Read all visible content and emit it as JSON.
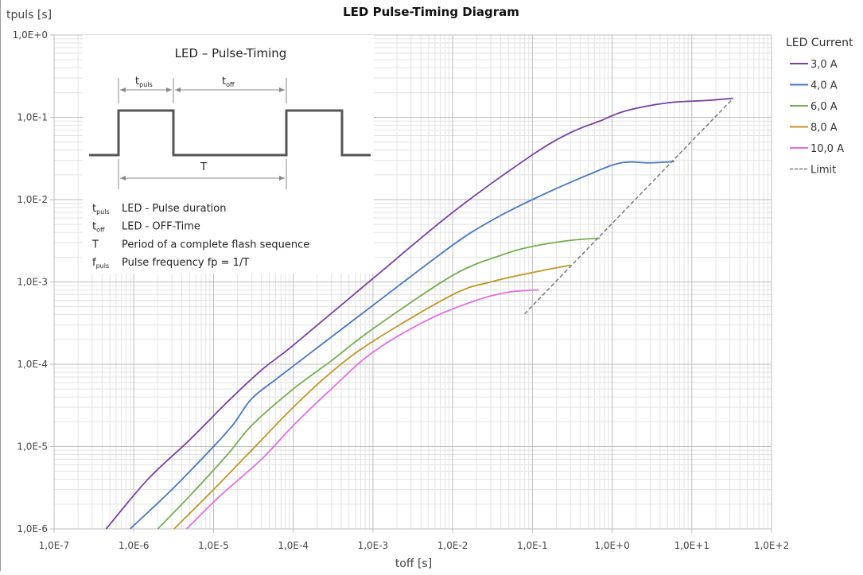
{
  "chart_data": {
    "type": "line",
    "title": "LED Pulse-Timing Diagram",
    "xlabel": "toff [s]",
    "ylabel": "tpuls [s]",
    "x_scale": "log",
    "y_scale": "log",
    "xlim": [
      1e-07,
      100
    ],
    "ylim": [
      1e-06,
      1
    ],
    "grid": true,
    "x_ticks": [
      "1,0E-7",
      "1,0E-6",
      "1,0E-5",
      "1,0E-4",
      "1,0E-3",
      "1,0E-2",
      "1,0E-1",
      "1,0E+0",
      "1,0E+1",
      "1,0E+2"
    ],
    "y_ticks": [
      "1,0E-6",
      "1,0E-5",
      "1,0E-4",
      "1,0E-3",
      "1,0E-2",
      "1,0E-1",
      "1,0E+0"
    ],
    "legend_title": "LED Current",
    "legend_position": "right",
    "series": [
      {
        "name": "3,0 A",
        "color": "#7a3ea1",
        "dash": false,
        "points": [
          [
            4.5e-07,
            1e-06
          ],
          [
            1.5e-06,
            4e-06
          ],
          [
            5e-06,
            1.2e-05
          ],
          [
            1.5e-05,
            3.5e-05
          ],
          [
            4e-05,
            8.5e-05
          ],
          [
            0.0001,
            0.00017
          ],
          [
            0.001,
            0.0011
          ],
          [
            0.01,
            0.007
          ],
          [
            0.1,
            0.035
          ],
          [
            0.3,
            0.065
          ],
          [
            0.7,
            0.09
          ],
          [
            1.5,
            0.12
          ],
          [
            5,
            0.15
          ],
          [
            15,
            0.16
          ],
          [
            33,
            0.17
          ]
        ]
      },
      {
        "name": "4,0 A",
        "color": "#4677c1",
        "dash": false,
        "points": [
          [
            9e-07,
            1e-06
          ],
          [
            3e-06,
            3e-06
          ],
          [
            1e-05,
            1e-05
          ],
          [
            1.8e-05,
            1.9e-05
          ],
          [
            3e-05,
            3.8e-05
          ],
          [
            6e-05,
            6.5e-05
          ],
          [
            0.0001,
            9.5e-05
          ],
          [
            0.001,
            0.00052
          ],
          [
            0.01,
            0.0028
          ],
          [
            0.03,
            0.0055
          ],
          [
            0.1,
            0.01
          ],
          [
            0.5,
            0.02
          ],
          [
            1.3,
            0.028
          ],
          [
            3,
            0.028
          ],
          [
            6,
            0.029
          ]
        ]
      },
      {
        "name": "6,0 A",
        "color": "#74af4f",
        "dash": false,
        "points": [
          [
            2e-06,
            1e-06
          ],
          [
            5e-06,
            2.5e-06
          ],
          [
            1.5e-05,
            8e-06
          ],
          [
            3e-05,
            1.8e-05
          ],
          [
            0.0001,
            5e-05
          ],
          [
            0.0003,
            0.00011
          ],
          [
            0.001,
            0.00027
          ],
          [
            0.01,
            0.0012
          ],
          [
            0.04,
            0.0021
          ],
          [
            0.1,
            0.0027
          ],
          [
            0.3,
            0.0032
          ],
          [
            0.7,
            0.0034
          ]
        ]
      },
      {
        "name": "8,0 A",
        "color": "#c29524",
        "dash": false,
        "points": [
          [
            3.2e-06,
            1e-06
          ],
          [
            1e-05,
            3e-06
          ],
          [
            3e-05,
            9e-06
          ],
          [
            0.0001,
            3e-05
          ],
          [
            0.0003,
            8e-05
          ],
          [
            0.001,
            0.00019
          ],
          [
            0.01,
            0.0007
          ],
          [
            0.03,
            0.001
          ],
          [
            0.1,
            0.0013
          ],
          [
            0.3,
            0.0016
          ]
        ]
      },
      {
        "name": "10,0 A",
        "color": "#e46ee0",
        "dash": false,
        "points": [
          [
            4.6e-06,
            1e-06
          ],
          [
            1.2e-05,
            2.5e-06
          ],
          [
            4e-05,
            7e-06
          ],
          [
            0.0001,
            1.8e-05
          ],
          [
            0.0003,
            5e-05
          ],
          [
            0.001,
            0.00014
          ],
          [
            0.005,
            0.00035
          ],
          [
            0.02,
            0.0006
          ],
          [
            0.05,
            0.00075
          ],
          [
            0.12,
            0.0008
          ]
        ]
      },
      {
        "name": "Limit",
        "color": "#777777",
        "dash": true,
        "points": [
          [
            0.08,
            0.00041
          ],
          [
            33,
            0.17
          ]
        ]
      }
    ]
  },
  "inset": {
    "title": "LED – Pulse-Timing",
    "t": "t",
    "sub_puls": "puls",
    "sub_off": "off",
    "period_label": "T",
    "f": "f",
    "legend": [
      {
        "sym": "t",
        "sub": "puls",
        "text": "LED - Pulse duration"
      },
      {
        "sym": "t",
        "sub": "off",
        "text": "LED - OFF-Time"
      },
      {
        "sym": "T",
        "sub": "",
        "text": "Period of a complete flash sequence"
      },
      {
        "sym": "f",
        "sub": "puls",
        "text": "Pulse frequency fp = 1/T"
      }
    ]
  }
}
